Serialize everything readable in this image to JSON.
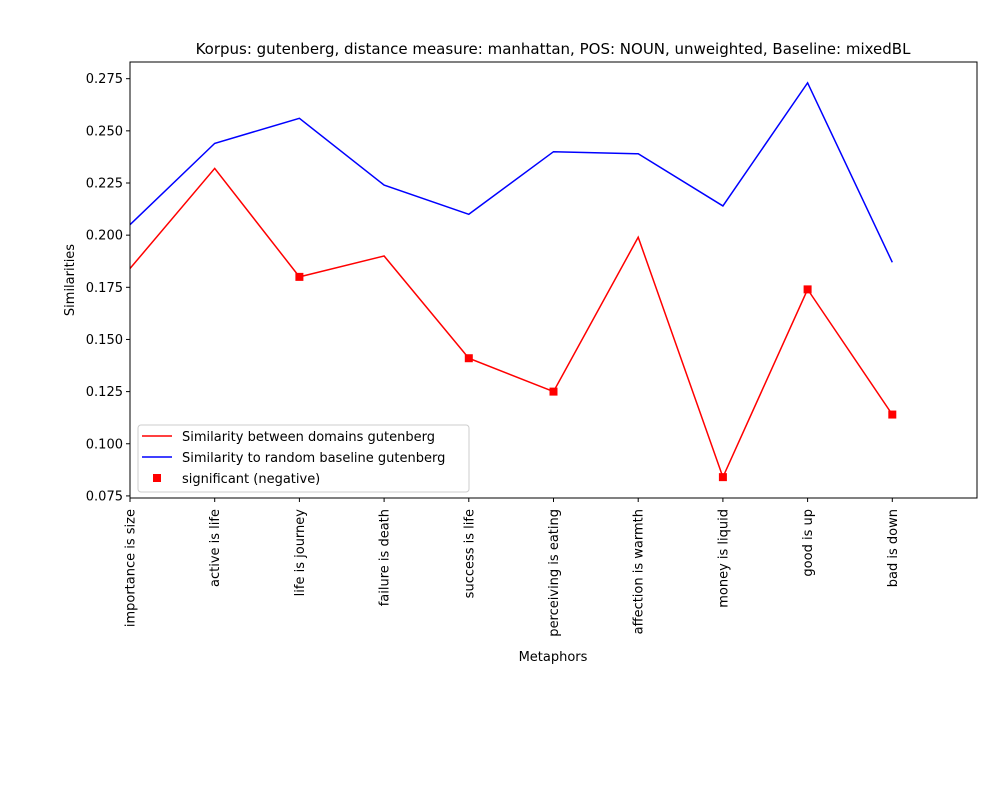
{
  "chart_data": {
    "type": "line",
    "title": "Korpus: gutenberg, distance measure: manhattan, POS: NOUN, unweighted, Baseline: mixedBL",
    "xlabel": "Metaphors",
    "ylabel": "Similarities",
    "categories": [
      "importance is size",
      "active is life",
      "life is journey",
      "failure is death",
      "success is life",
      "perceiving is eating",
      "affection is warmth",
      "money is liquid",
      "good is up",
      "bad is down"
    ],
    "xlim": [
      0,
      10
    ],
    "ylim": [
      0.074,
      0.283
    ],
    "yticks": [
      0.075,
      0.1,
      0.125,
      0.15,
      0.175,
      0.2,
      0.225,
      0.25,
      0.275
    ],
    "ytick_labels": [
      "0.075",
      "0.100",
      "0.125",
      "0.150",
      "0.175",
      "0.200",
      "0.225",
      "0.250",
      "0.275"
    ],
    "grid": false,
    "legend_position": "lower-left",
    "series": [
      {
        "name": "Similarity between domains gutenberg",
        "color": "#ff0000",
        "kind": "line",
        "values": [
          0.184,
          0.232,
          0.18,
          0.19,
          0.141,
          0.125,
          0.199,
          0.084,
          0.174,
          0.114
        ]
      },
      {
        "name": "Similarity to random baseline gutenberg",
        "color": "#0000ff",
        "kind": "line",
        "values": [
          0.205,
          0.244,
          0.256,
          0.224,
          0.21,
          0.24,
          0.239,
          0.214,
          0.273,
          0.187
        ]
      },
      {
        "name": "significant (negative)",
        "color": "#ff0000",
        "kind": "marker",
        "marker": "square",
        "points": [
          {
            "category": "life is journey",
            "value": 0.18
          },
          {
            "category": "success is life",
            "value": 0.141
          },
          {
            "category": "perceiving is eating",
            "value": 0.125
          },
          {
            "category": "money is liquid",
            "value": 0.084
          },
          {
            "category": "good is up",
            "value": 0.174
          },
          {
            "category": "bad is down",
            "value": 0.114
          }
        ]
      }
    ]
  }
}
